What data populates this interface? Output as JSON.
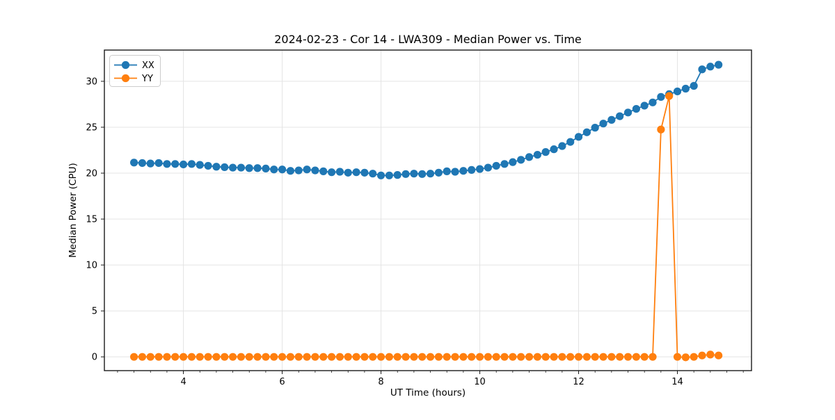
{
  "chart_data": {
    "type": "line",
    "title": "2024-02-23 - Cor 14 - LWA309 - Median Power vs. Time",
    "xlabel": "UT Time (hours)",
    "ylabel": "Median Power (CPU)",
    "xlim": [
      2.4,
      15.5
    ],
    "ylim": [
      -1.5,
      33.4
    ],
    "x_ticks": [
      4,
      6,
      8,
      10,
      12,
      14
    ],
    "y_ticks": [
      0,
      5,
      10,
      15,
      20,
      25,
      30
    ],
    "x_minor_step": 0.33333,
    "grid": true,
    "legend_position": "upper left",
    "marker": "circle",
    "x": [
      3.0,
      3.167,
      3.333,
      3.5,
      3.667,
      3.833,
      4.0,
      4.167,
      4.333,
      4.5,
      4.667,
      4.833,
      5.0,
      5.167,
      5.333,
      5.5,
      5.667,
      5.833,
      6.0,
      6.167,
      6.333,
      6.5,
      6.667,
      6.833,
      7.0,
      7.167,
      7.333,
      7.5,
      7.667,
      7.833,
      8.0,
      8.167,
      8.333,
      8.5,
      8.667,
      8.833,
      9.0,
      9.167,
      9.333,
      9.5,
      9.667,
      9.833,
      10.0,
      10.167,
      10.333,
      10.5,
      10.667,
      10.833,
      11.0,
      11.167,
      11.333,
      11.5,
      11.667,
      11.833,
      12.0,
      12.167,
      12.333,
      12.5,
      12.667,
      12.833,
      13.0,
      13.167,
      13.333,
      13.5,
      13.667,
      13.833,
      14.0,
      14.167,
      14.333,
      14.5,
      14.667,
      14.833
    ],
    "series": [
      {
        "name": "XX",
        "color": "#1f77b4",
        "values": [
          21.15,
          21.1,
          21.05,
          21.1,
          21.0,
          21.0,
          20.95,
          21.0,
          20.9,
          20.8,
          20.7,
          20.65,
          20.6,
          20.6,
          20.55,
          20.55,
          20.5,
          20.4,
          20.4,
          20.25,
          20.3,
          20.4,
          20.3,
          20.2,
          20.1,
          20.15,
          20.05,
          20.1,
          20.05,
          19.95,
          19.75,
          19.75,
          19.8,
          19.9,
          19.95,
          19.9,
          19.95,
          20.05,
          20.2,
          20.15,
          20.25,
          20.35,
          20.45,
          20.6,
          20.8,
          21.0,
          21.2,
          21.45,
          21.75,
          22.0,
          22.3,
          22.6,
          22.95,
          23.4,
          23.95,
          24.45,
          24.95,
          25.4,
          25.8,
          26.2,
          26.6,
          27.0,
          27.35,
          27.7,
          28.3,
          28.6,
          28.9,
          29.2,
          29.5,
          31.3,
          31.6,
          31.8
        ]
      },
      {
        "name": "YY",
        "color": "#ff7f0e",
        "values": [
          0,
          0,
          0,
          0,
          0,
          0,
          0,
          0,
          0,
          0,
          0,
          0,
          0,
          0,
          0,
          0,
          0,
          0,
          0,
          0,
          0,
          0,
          0,
          0,
          0,
          0,
          0,
          0,
          0,
          0,
          0,
          0,
          0,
          0,
          0,
          0,
          0,
          0,
          0,
          0,
          0,
          0,
          0,
          0,
          0,
          0,
          0,
          0,
          0,
          0,
          0,
          0,
          0,
          0,
          0,
          0,
          0,
          0,
          0,
          0,
          0,
          0,
          0,
          0,
          24.75,
          28.4,
          0,
          -0.05,
          0,
          0.15,
          0.25,
          0.15
        ]
      }
    ]
  }
}
